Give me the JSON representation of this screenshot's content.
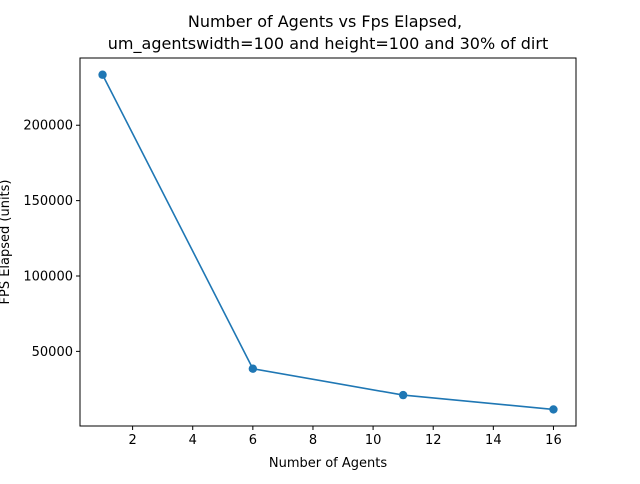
{
  "chart_data": {
    "type": "line",
    "title_line1": "Number of Agents vs Fps Elapsed,",
    "title_line2": "um_agentswidth=100 and height=100 and 30% of dirt",
    "xlabel": "Number of Agents",
    "ylabel": "FPS Elapsed (units)",
    "x": [
      1,
      6,
      11,
      16
    ],
    "y": [
      233500,
      38500,
      21000,
      11500
    ],
    "xlim": [
      0.25,
      16.75
    ],
    "ylim": [
      500,
      244600
    ],
    "xticks": [
      2,
      4,
      6,
      8,
      10,
      12,
      14,
      16
    ],
    "yticks": [
      50000,
      100000,
      150000,
      200000
    ],
    "grid": false,
    "legend": "none",
    "marker": "circle",
    "color": "#1f77b4"
  }
}
